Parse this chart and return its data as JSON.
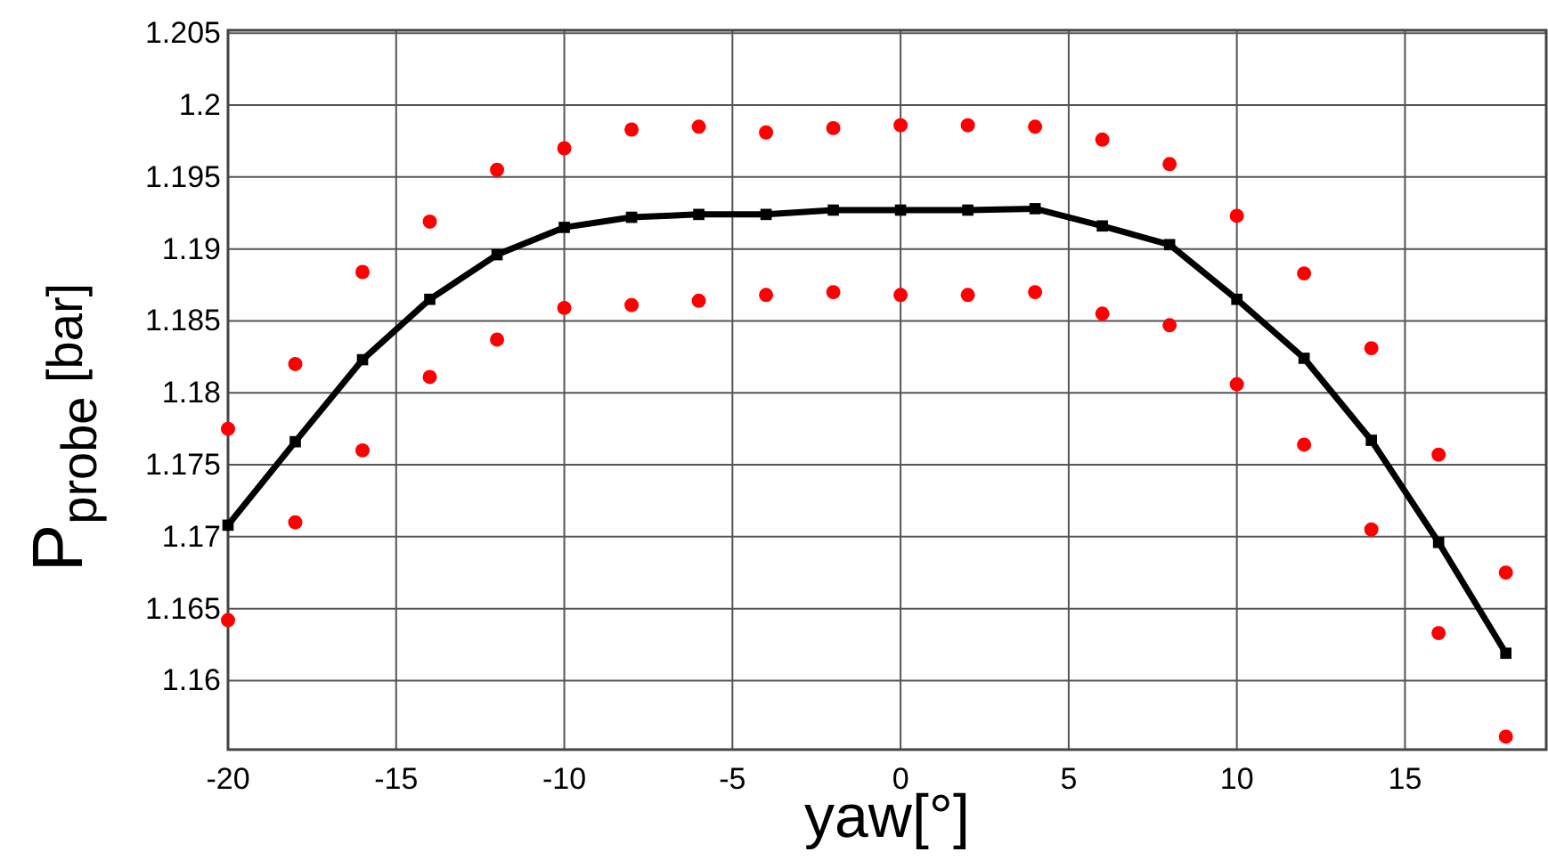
{
  "chart_data": {
    "type": "line",
    "xlabel": "yaw[°]",
    "ylabel": "P$_{probe}$ [bar]",
    "xlim": [
      -20,
      19.2
    ],
    "ylim": [
      1.1552,
      1.2052
    ],
    "xticks": [
      -20,
      -15,
      -10,
      -5,
      0,
      5,
      10,
      15
    ],
    "yticks": [
      1.16,
      1.165,
      1.17,
      1.175,
      1.18,
      1.185,
      1.19,
      1.195,
      1.2,
      1.205
    ],
    "grid": true,
    "series": [
      {
        "type": "scatter",
        "color": "#ff0000",
        "marker": "circle",
        "x": [
          -20,
          -18,
          -16,
          -14,
          -12,
          -10,
          -8,
          -6,
          -4,
          -2,
          0,
          2,
          4,
          6,
          8,
          10,
          12,
          14,
          16,
          18
        ],
        "values": [
          1.1775,
          1.182,
          1.1884,
          1.1919,
          1.1955,
          1.197,
          1.1983,
          1.1985,
          1.1981,
          1.1984,
          1.1986,
          1.1986,
          1.1985,
          1.1976,
          1.1959,
          1.1923,
          1.1883,
          1.1831,
          1.1757,
          1.1675
        ]
      },
      {
        "type": "scatter",
        "color": "#ff0000",
        "marker": "circle",
        "x": [
          -20,
          -18,
          -16,
          -14,
          -12,
          -10,
          -8,
          -6,
          -4,
          -2,
          0,
          2,
          4,
          6,
          8,
          10,
          12,
          14,
          16,
          18
        ],
        "values": [
          1.1642,
          1.171,
          1.176,
          1.1811,
          1.1837,
          1.1859,
          1.1861,
          1.1864,
          1.1868,
          1.187,
          1.1868,
          1.1868,
          1.187,
          1.1855,
          1.1847,
          1.1806,
          1.1764,
          1.1705,
          1.1633,
          1.1561
        ]
      },
      {
        "color": "#000000",
        "marker": "square",
        "line_style": "solid",
        "x": [
          -20,
          -18,
          -16,
          -14,
          -12,
          -10,
          -8,
          -6,
          -4,
          -2,
          0,
          2,
          4,
          6,
          8,
          10,
          12,
          14,
          16,
          18
        ],
        "values": [
          1.1708,
          1.1766,
          1.1823,
          1.1865,
          1.1896,
          1.1915,
          1.1922,
          1.1924,
          1.1924,
          1.1927,
          1.1927,
          1.1927,
          1.1928,
          1.1916,
          1.1903,
          1.1865,
          1.1824,
          1.1767,
          1.1696,
          1.1619
        ]
      }
    ]
  }
}
